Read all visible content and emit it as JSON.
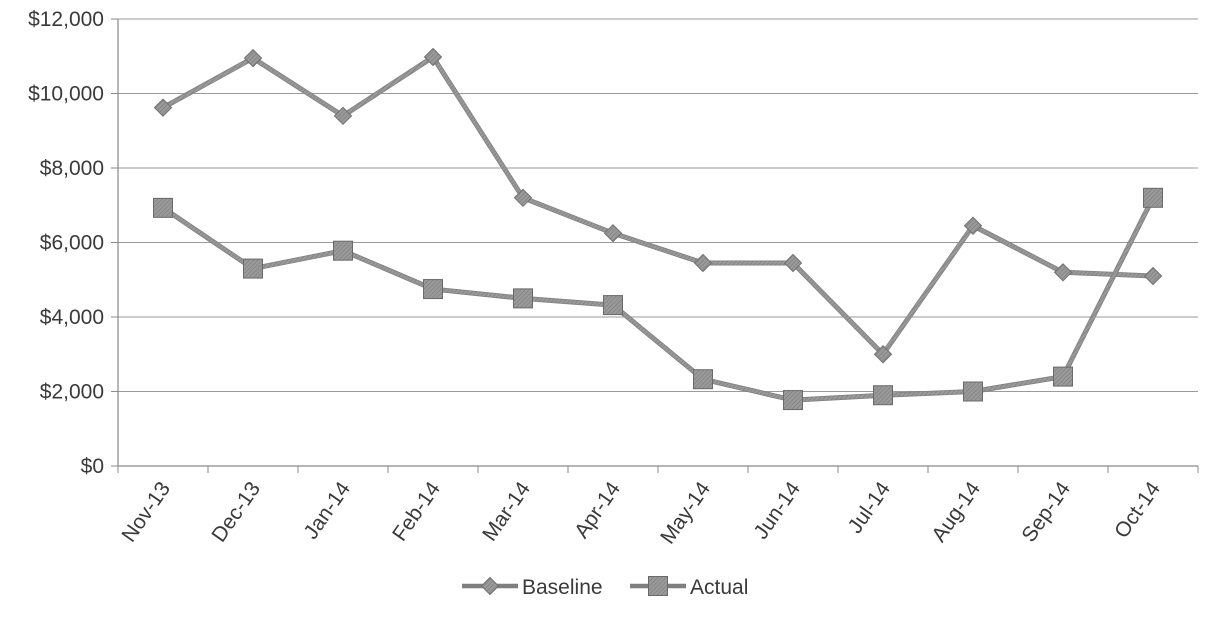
{
  "chart_data": {
    "type": "line",
    "title": "",
    "xlabel": "",
    "ylabel": "",
    "categories": [
      "Nov-13",
      "Dec-13",
      "Jan-14",
      "Feb-14",
      "Mar-14",
      "Apr-14",
      "May-14",
      "Jun-14",
      "Jul-14",
      "Aug-14",
      "Sep-14",
      "Oct-14"
    ],
    "ylim": [
      0,
      12000
    ],
    "y_ticks": [
      0,
      2000,
      4000,
      6000,
      8000,
      10000,
      12000
    ],
    "y_tick_labels": [
      "$0",
      "$2,000",
      "$4,000",
      "$6,000",
      "$8,000",
      "$10,000",
      "$12,000"
    ],
    "grid": true,
    "legend_position": "bottom",
    "series": [
      {
        "name": "Baseline",
        "marker": "diamond",
        "color": "#8c8c8c",
        "values": [
          9620,
          10950,
          9400,
          10980,
          7200,
          6250,
          5450,
          5450,
          3000,
          6450,
          5200,
          5100
        ]
      },
      {
        "name": "Actual",
        "marker": "square",
        "color": "#8c8c8c",
        "values": [
          6930,
          5300,
          5780,
          4750,
          4500,
          4320,
          2330,
          1770,
          1900,
          2000,
          2400,
          7200
        ]
      }
    ]
  }
}
